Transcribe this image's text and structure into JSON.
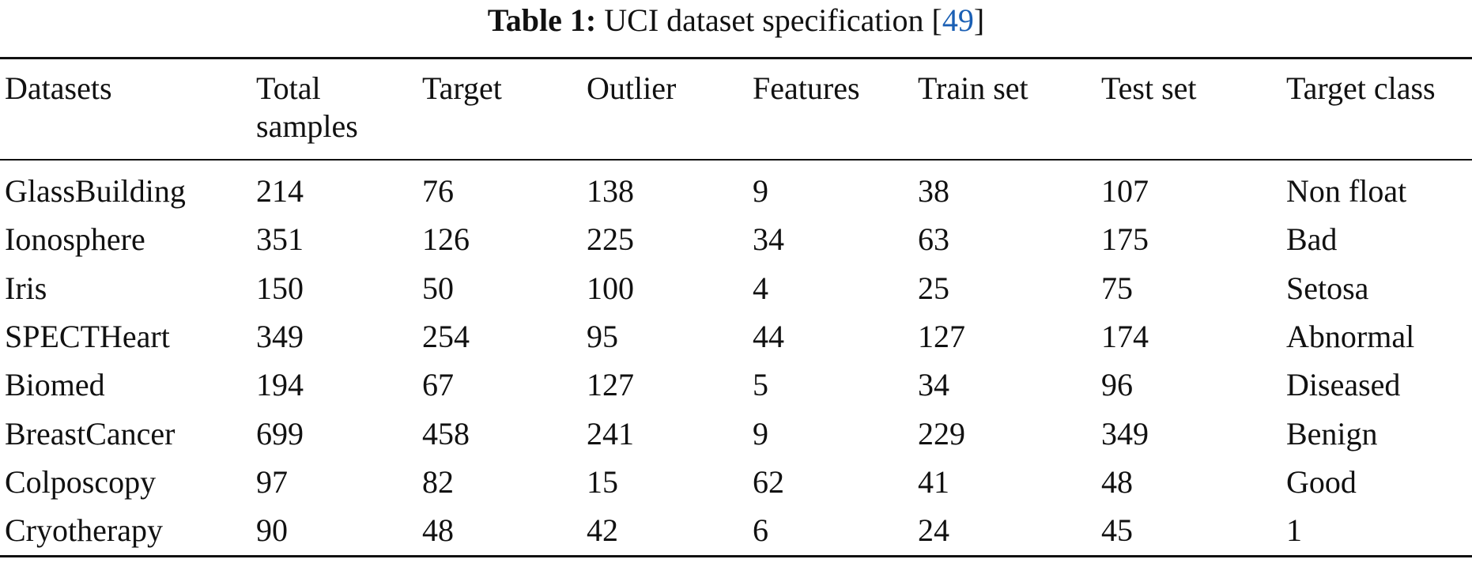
{
  "caption": {
    "label": "Table 1:",
    "text": "UCI dataset specification [",
    "ref": "49",
    "close": "]"
  },
  "table": {
    "header": [
      "Datasets",
      "Total samples",
      "Target",
      "Outlier",
      "Features",
      "Train set",
      "Test set",
      "Target class"
    ],
    "rows": [
      [
        "GlassBuilding",
        214,
        76,
        138,
        9,
        38,
        107,
        "Non float"
      ],
      [
        "Ionosphere",
        351,
        126,
        225,
        34,
        63,
        175,
        "Bad"
      ],
      [
        "Iris",
        150,
        50,
        100,
        4,
        25,
        75,
        "Setosa"
      ],
      [
        "SPECTHeart",
        349,
        254,
        95,
        44,
        127,
        174,
        "Abnormal"
      ],
      [
        "Biomed",
        194,
        67,
        127,
        5,
        34,
        96,
        "Diseased"
      ],
      [
        "BreastCancer",
        699,
        458,
        241,
        9,
        229,
        349,
        "Benign"
      ],
      [
        "Colposcopy",
        97,
        82,
        15,
        62,
        41,
        48,
        "Good"
      ],
      [
        "Cryotherapy",
        90,
        48,
        42,
        6,
        24,
        45,
        "1"
      ]
    ]
  }
}
